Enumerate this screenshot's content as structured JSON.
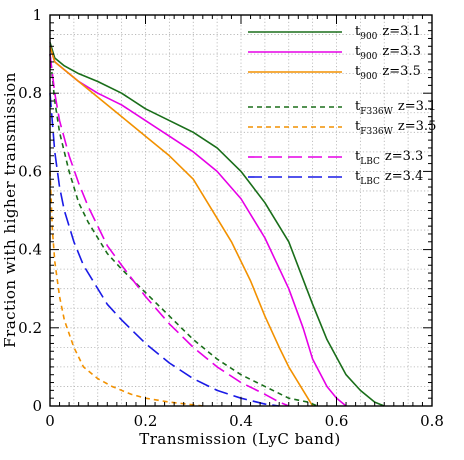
{
  "chart_data": {
    "type": "line",
    "title": "",
    "xlabel": "Transmission (LyC band)",
    "ylabel": "Fraction with higher transmission",
    "xlim": [
      0,
      0.8
    ],
    "ylim": [
      0,
      1
    ],
    "xticks": [
      0,
      0.2,
      0.4,
      0.6,
      0.8
    ],
    "xtick_labels": [
      "0",
      "0.2",
      "0.4",
      "0.6",
      "0.8"
    ],
    "yticks": [
      0,
      0.2,
      0.4,
      0.6,
      0.8,
      1
    ],
    "ytick_labels": [
      "0",
      "0.2",
      "0.4",
      "0.6",
      "0.8",
      "1"
    ],
    "grid": true,
    "legend_position": "top-right",
    "series": [
      {
        "name": "t900 z=3.1",
        "label_main": "t",
        "label_sub": "900",
        "label_z": "z=3.1",
        "color": "#1a6e1a",
        "dash": "solid",
        "x": [
          0,
          0.01,
          0.03,
          0.06,
          0.1,
          0.15,
          0.2,
          0.25,
          0.3,
          0.35,
          0.4,
          0.45,
          0.5,
          0.55,
          0.58,
          0.62,
          0.65,
          0.68,
          0.7
        ],
        "y": [
          0.93,
          0.89,
          0.87,
          0.85,
          0.83,
          0.8,
          0.76,
          0.73,
          0.7,
          0.66,
          0.6,
          0.52,
          0.42,
          0.26,
          0.17,
          0.08,
          0.04,
          0.01,
          0.0
        ]
      },
      {
        "name": "t900 z=3.3",
        "label_main": "t",
        "label_sub": "900",
        "label_z": "z=3.3",
        "color": "#e600e6",
        "dash": "solid",
        "x": [
          0,
          0.01,
          0.03,
          0.06,
          0.1,
          0.15,
          0.2,
          0.25,
          0.3,
          0.35,
          0.4,
          0.45,
          0.5,
          0.53,
          0.55,
          0.58,
          0.6,
          0.62
        ],
        "y": [
          0.92,
          0.88,
          0.86,
          0.83,
          0.8,
          0.77,
          0.73,
          0.69,
          0.65,
          0.6,
          0.53,
          0.43,
          0.3,
          0.2,
          0.12,
          0.05,
          0.02,
          0.0
        ]
      },
      {
        "name": "t900 z=3.5",
        "label_main": "t",
        "label_sub": "900",
        "label_z": "z=3.5",
        "color": "#f29100",
        "dash": "solid",
        "x": [
          0,
          0.01,
          0.03,
          0.06,
          0.1,
          0.15,
          0.2,
          0.25,
          0.3,
          0.35,
          0.38,
          0.42,
          0.45,
          0.48,
          0.5,
          0.52,
          0.54,
          0.55
        ],
        "y": [
          0.92,
          0.88,
          0.86,
          0.83,
          0.79,
          0.74,
          0.69,
          0.64,
          0.58,
          0.48,
          0.42,
          0.32,
          0.23,
          0.15,
          0.1,
          0.06,
          0.02,
          0.0
        ]
      },
      {
        "name": "tF336W z=3.1",
        "label_main": "t",
        "label_sub": "F336W",
        "label_z": "z=3.1",
        "color": "#1a6e1a",
        "dash": "short",
        "x": [
          0,
          0.01,
          0.02,
          0.04,
          0.06,
          0.08,
          0.1,
          0.12,
          0.15,
          0.2,
          0.25,
          0.3,
          0.35,
          0.4,
          0.45,
          0.5,
          0.54,
          0.56
        ],
        "y": [
          0.9,
          0.78,
          0.7,
          0.6,
          0.52,
          0.47,
          0.43,
          0.39,
          0.35,
          0.29,
          0.23,
          0.17,
          0.12,
          0.08,
          0.05,
          0.02,
          0.01,
          0.0
        ]
      },
      {
        "name": "tF336W z=3.5",
        "label_main": "t",
        "label_sub": "F336W",
        "label_z": "z=3.5",
        "color": "#f29100",
        "dash": "short",
        "x": [
          0,
          0.005,
          0.01,
          0.02,
          0.03,
          0.05,
          0.07,
          0.1,
          0.13,
          0.17,
          0.2,
          0.25,
          0.3,
          0.32
        ],
        "y": [
          0.6,
          0.45,
          0.37,
          0.28,
          0.22,
          0.15,
          0.1,
          0.07,
          0.05,
          0.03,
          0.02,
          0.01,
          0.003,
          0.0
        ]
      },
      {
        "name": "tLBC z=3.3",
        "label_main": "t",
        "label_sub": "LBC",
        "label_z": "z=3.3",
        "color": "#e600e6",
        "dash": "long",
        "x": [
          0,
          0.01,
          0.02,
          0.04,
          0.06,
          0.08,
          0.1,
          0.12,
          0.15,
          0.2,
          0.25,
          0.3,
          0.35,
          0.4,
          0.45,
          0.48,
          0.5
        ],
        "y": [
          0.9,
          0.8,
          0.73,
          0.64,
          0.57,
          0.51,
          0.46,
          0.41,
          0.36,
          0.28,
          0.21,
          0.15,
          0.1,
          0.06,
          0.03,
          0.01,
          0.0
        ]
      },
      {
        "name": "tLBC z=3.4",
        "label_main": "t",
        "label_sub": "LBC",
        "label_z": "z=3.4",
        "color": "#1a1ae6",
        "dash": "long",
        "x": [
          0,
          0.01,
          0.02,
          0.03,
          0.05,
          0.07,
          0.1,
          0.12,
          0.15,
          0.2,
          0.25,
          0.3,
          0.35,
          0.4,
          0.45,
          0.48
        ],
        "y": [
          0.8,
          0.65,
          0.56,
          0.5,
          0.42,
          0.36,
          0.3,
          0.26,
          0.22,
          0.16,
          0.11,
          0.07,
          0.04,
          0.02,
          0.005,
          0.0
        ]
      }
    ]
  }
}
